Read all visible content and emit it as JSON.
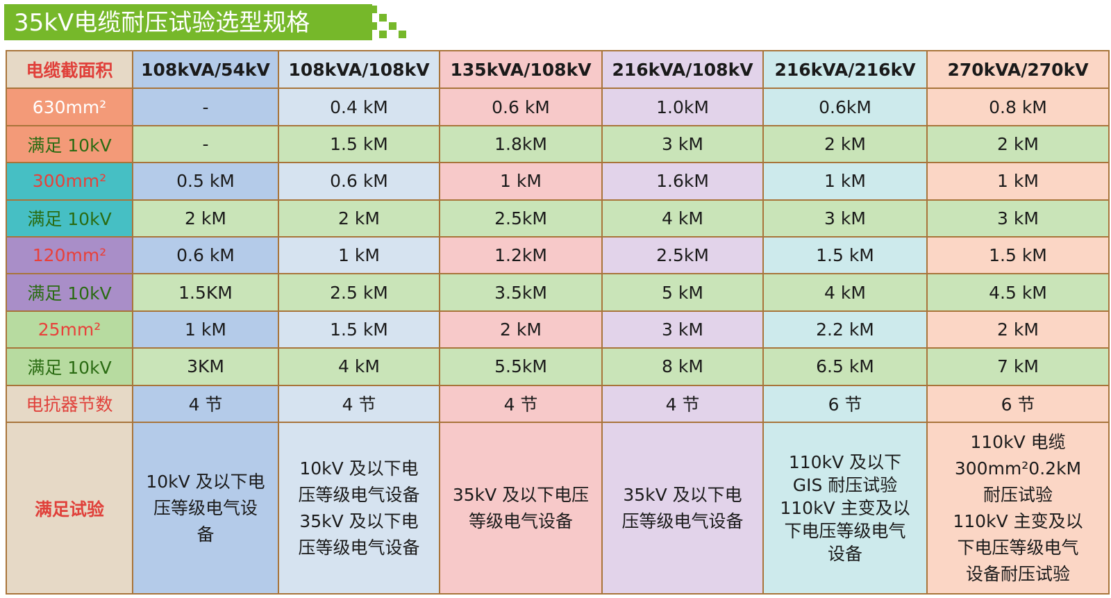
{
  "title": "35kV电缆耐压试验选型规格",
  "colors": {
    "title_bg": "#76b82a",
    "green_text": "#2fb34a",
    "red_text": "#e0403a",
    "border": "#a8743a"
  },
  "table": {
    "header_label": "电缆截面积",
    "columns": [
      "108kVA/54kV",
      "108kVA/108kV",
      "135kVA/108kV",
      "216kVA/108kV",
      "216kVA/216kV",
      "270kVA/270kV"
    ],
    "rows": [
      {
        "label": "630mm²",
        "values": [
          "-",
          "0.4 kM",
          "0.6 kM",
          "1.0kM",
          "0.6kM",
          "0.8 kM"
        ]
      },
      {
        "label": "满足 10kV",
        "values": [
          "-",
          "1.5 kM",
          "1.8kM",
          "3 kM",
          "2 kM",
          "2 kM"
        ]
      },
      {
        "label": "300mm²",
        "values": [
          "0.5 kM",
          "0.6 kM",
          "1 kM",
          "1.6kM",
          "1 kM",
          "1 kM"
        ]
      },
      {
        "label": "满足 10kV",
        "values": [
          "2 kM",
          "2 kM",
          "2.5kM",
          "4 kM",
          "3 kM",
          "3 kM"
        ]
      },
      {
        "label": "120mm²",
        "values": [
          "0.6 kM",
          "1 kM",
          "1.2kM",
          "2.5kM",
          "1.5 kM",
          "1.5 kM"
        ]
      },
      {
        "label": "满足 10kV",
        "values": [
          "1.5KM",
          "2.5 kM",
          "3.5kM",
          "5 kM",
          "4 kM",
          "4.5 kM"
        ]
      },
      {
        "label": "25mm²",
        "values": [
          "1 kM",
          "1.5 kM",
          "2 kM",
          "3 kM",
          "2.2 kM",
          "2 kM"
        ]
      },
      {
        "label": "满足 10kV",
        "values": [
          "3KM",
          "4 kM",
          "5.5kM",
          "8 kM",
          "6.5 kM",
          "7 kM"
        ]
      }
    ],
    "reactor_label": "电抗器节数",
    "reactor_values": [
      "4 节",
      "4 节",
      "4 节",
      "4 节",
      "6 节",
      "6 节"
    ],
    "test_label": "满足试验",
    "test_values": [
      [
        "10kV 及以下电",
        "压等级电气设",
        "备"
      ],
      [
        "10kV 及以下电",
        "压等级电气设备",
        "35kV 及以下电",
        "压等级电气设备"
      ],
      [
        "35kV 及以下电压",
        "等级电气设备"
      ],
      [
        "35kV 及以下电",
        "压等级电气设备"
      ],
      [
        "110kV 及以下",
        "GIS 耐压试验",
        "110kV 主变及以",
        "下电压等级电气",
        "设备"
      ],
      [
        "110kV 电缆",
        "300mm²0.2kM",
        "耐压试验",
        "110kV 主变及以",
        "下电压等级电气",
        "设备耐压试验"
      ]
    ]
  }
}
